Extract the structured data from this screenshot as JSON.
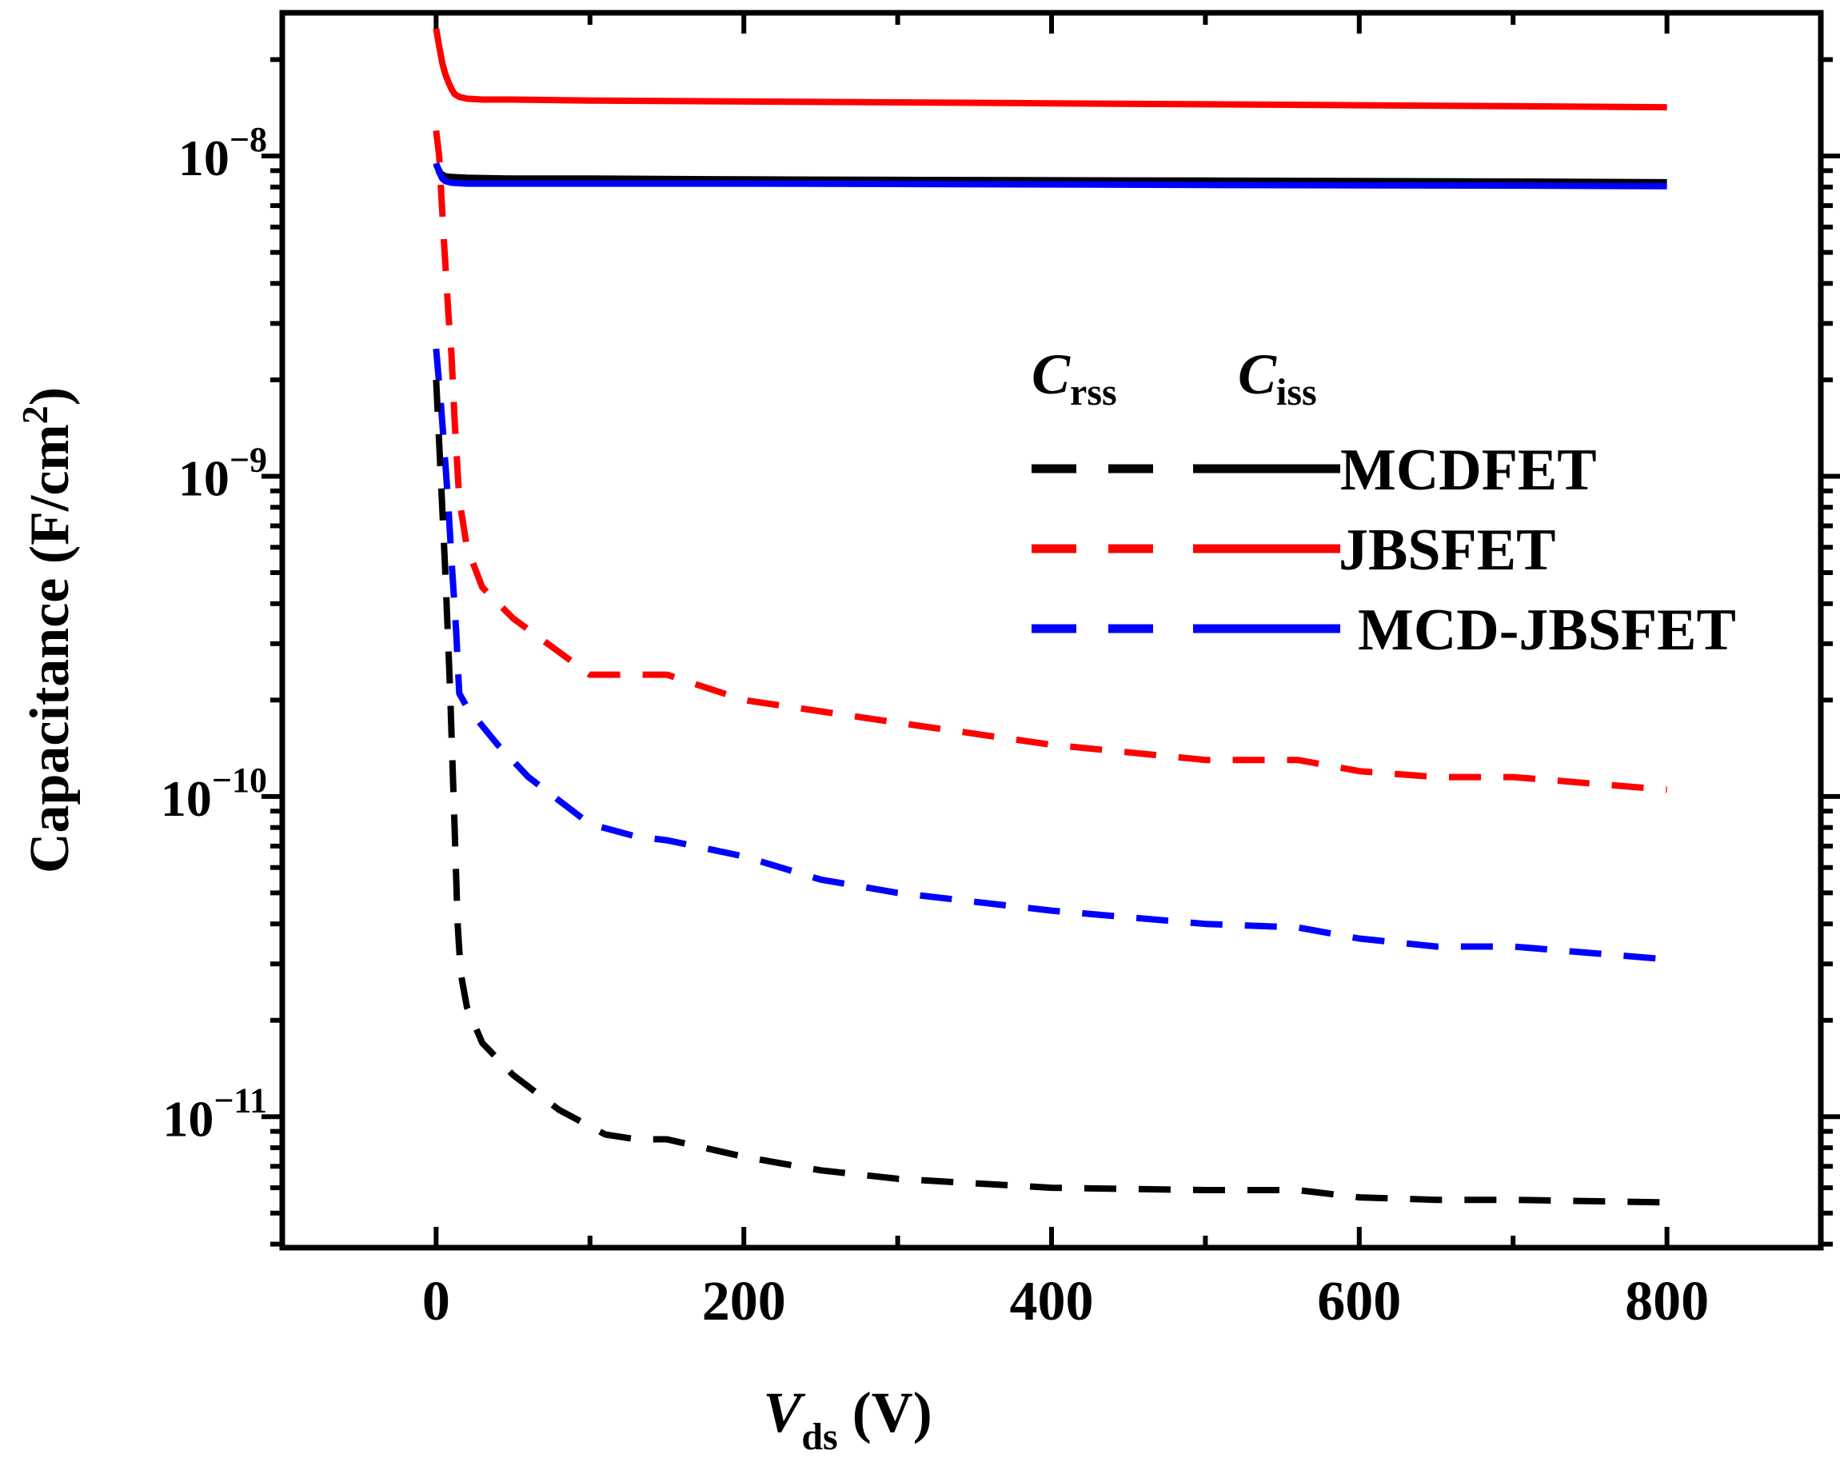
{
  "chart_data": {
    "type": "line",
    "yscale": "log",
    "xlabel": {
      "main": "V",
      "sub": "ds",
      "unit": " (V)"
    },
    "ylabel": {
      "text": "Capacitance (F/cm",
      "sup": "2",
      "close": ")"
    },
    "xlim": [
      -100,
      900
    ],
    "ylim": [
      3.9e-12,
      2.8e-08
    ],
    "x_ticks": [
      0,
      200,
      400,
      600,
      800
    ],
    "x_tick_labels": [
      "0",
      "200",
      "400",
      "600",
      "800"
    ],
    "y_ticks": [
      1e-11,
      1e-10,
      1e-09,
      1e-08
    ],
    "y_tick_labels": [
      {
        "base": "10",
        "exp": "−11"
      },
      {
        "base": "10",
        "exp": "−10"
      },
      {
        "base": "10",
        "exp": "−9"
      },
      {
        "base": "10",
        "exp": "−8"
      }
    ],
    "legend": {
      "placement": "upper-right",
      "col_headers": [
        {
          "main": "C",
          "sub": "rss"
        },
        {
          "main": "C",
          "sub": "iss"
        }
      ],
      "entries": [
        "MCDFET",
        "JBSFET",
        "MCD-JBSFET"
      ]
    },
    "series": [
      {
        "name": "MCDFET C_iss",
        "device": "MCDFET",
        "quantity": "Ciss",
        "color": "#000000",
        "dash": "solid",
        "x": [
          0,
          3,
          6,
          10,
          20,
          50,
          100,
          200,
          300,
          400,
          500,
          600,
          700,
          800
        ],
        "y": [
          9.4e-09,
          8.8e-09,
          8.65e-09,
          8.6e-09,
          8.55e-09,
          8.5e-09,
          8.5e-09,
          8.45e-09,
          8.42e-09,
          8.4e-09,
          8.38e-09,
          8.35e-09,
          8.32e-09,
          8.28e-09
        ]
      },
      {
        "name": "JBSFET C_iss",
        "device": "JBSFET",
        "quantity": "Ciss",
        "color": "#ff0000",
        "dash": "solid",
        "x": [
          0,
          2,
          4,
          6,
          8,
          10,
          12,
          15,
          20,
          30,
          50,
          100,
          200,
          300,
          400,
          500,
          600,
          700,
          800
        ],
        "y": [
          2.5e-08,
          2.2e-08,
          1.95e-08,
          1.8e-08,
          1.7e-08,
          1.62e-08,
          1.56e-08,
          1.53e-08,
          1.51e-08,
          1.5e-08,
          1.5e-08,
          1.49e-08,
          1.48e-08,
          1.47e-08,
          1.46e-08,
          1.45e-08,
          1.44e-08,
          1.43e-08,
          1.42e-08
        ]
      },
      {
        "name": "MCD-JBSFET C_iss",
        "device": "MCD-JBSFET",
        "quantity": "Ciss",
        "color": "#0000ff",
        "dash": "solid",
        "x": [
          0,
          2,
          4,
          6,
          10,
          20,
          50,
          100,
          200,
          300,
          400,
          500,
          600,
          700,
          800
        ],
        "y": [
          9.5e-09,
          8.9e-09,
          8.5e-09,
          8.35e-09,
          8.25e-09,
          8.2e-09,
          8.2e-09,
          8.2e-09,
          8.2e-09,
          8.18e-09,
          8.15e-09,
          8.12e-09,
          8.1e-09,
          8.08e-09,
          8.05e-09
        ]
      },
      {
        "name": "JBSFET C_rss",
        "device": "JBSFET",
        "quantity": "Crss",
        "color": "#ff0000",
        "dash": "dashed",
        "x": [
          0,
          2,
          5,
          8,
          10,
          12,
          15,
          20,
          30,
          50,
          100,
          150,
          200,
          300,
          400,
          500,
          560,
          600,
          650,
          700,
          800
        ],
        "y": [
          1.2e-08,
          1e-08,
          5.5e-09,
          3.2e-09,
          2.4e-09,
          1.5e-09,
          8.5e-10,
          6e-10,
          4.5e-10,
          3.6e-10,
          2.4e-10,
          2.4e-10,
          2e-10,
          1.7e-10,
          1.45e-10,
          1.3e-10,
          1.3e-10,
          1.2e-10,
          1.15e-10,
          1.15e-10,
          1.05e-10
        ]
      },
      {
        "name": "MCD-JBSFET C_rss",
        "device": "MCD-JBSFET",
        "quantity": "Crss",
        "color": "#0000ff",
        "dash": "dashed",
        "x": [
          0,
          3,
          6,
          8,
          10,
          13,
          15,
          20,
          40,
          60,
          100,
          130,
          150,
          200,
          250,
          300,
          400,
          500,
          560,
          600,
          650,
          700,
          800
        ],
        "y": [
          2.5e-09,
          1.7e-09,
          1.1e-09,
          8e-10,
          5.5e-10,
          3.3e-10,
          2.1e-10,
          1.9e-10,
          1.45e-10,
          1.15e-10,
          8.2e-11,
          7.5e-11,
          7.3e-11,
          6.5e-11,
          5.5e-11,
          5e-11,
          4.4e-11,
          4e-11,
          3.9e-11,
          3.6e-11,
          3.4e-11,
          3.4e-11,
          3.1e-11
        ]
      },
      {
        "name": "MCDFET C_rss",
        "device": "MCDFET",
        "quantity": "Crss",
        "color": "#000000",
        "dash": "dashed",
        "x": [
          0,
          3,
          6,
          9,
          12,
          14,
          16,
          20,
          30,
          50,
          80,
          110,
          130,
          150,
          200,
          250,
          300,
          400,
          500,
          560,
          600,
          650,
          700,
          800
        ],
        "y": [
          2e-09,
          1e-09,
          5e-10,
          2.2e-10,
          8e-11,
          4e-11,
          2.8e-11,
          2.2e-11,
          1.7e-11,
          1.35e-11,
          1.05e-11,
          8.8e-12,
          8.5e-12,
          8.5e-12,
          7.5e-12,
          6.8e-12,
          6.4e-12,
          6e-12,
          5.9e-12,
          5.9e-12,
          5.6e-12,
          5.5e-12,
          5.5e-12,
          5.4e-12
        ]
      }
    ]
  }
}
